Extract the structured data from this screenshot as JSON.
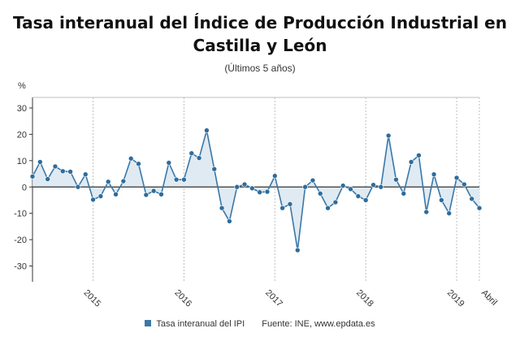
{
  "title": "Tasa interanual del Índice de Producción Industrial en Castilla y León",
  "subtitle": "(Últimos 5 años)",
  "legend": {
    "series_label": "Tasa interanual del IPI",
    "source": "Fuente: INE, www.epdata.es"
  },
  "colors": {
    "line": "#3a78a8",
    "point": "#2f6c9c",
    "fill": "#dbe6f0",
    "grid": "#bfbfbf",
    "axis": "#333333"
  },
  "chart_data": {
    "type": "area",
    "ylabel": "%",
    "ylim": [
      -36,
      34
    ],
    "yticks": [
      30,
      20,
      10,
      0,
      -10,
      -20,
      -30
    ],
    "x_start": "2014-05",
    "x_end": "2019-04",
    "year_ticks": [
      "2015",
      "2016",
      "2017",
      "2018",
      "2019"
    ],
    "end_label": "Abril",
    "grid": "vertical at year boundaries",
    "legend_position": "bottom",
    "series": [
      {
        "name": "Tasa interanual del IPI",
        "values": [
          4.0,
          9.5,
          3.0,
          7.8,
          6.0,
          5.8,
          0.0,
          4.8,
          -4.8,
          -3.5,
          2.0,
          -2.8,
          2.2,
          10.8,
          8.8,
          -3.0,
          -1.5,
          -2.8,
          9.2,
          2.8,
          2.8,
          12.8,
          11.0,
          21.5,
          6.8,
          -8.0,
          -13.0,
          0.0,
          1.0,
          -0.5,
          -2.0,
          -1.8,
          4.2,
          -8.0,
          -6.5,
          -24.0,
          0.0,
          2.5,
          -2.5,
          -8.0,
          -5.8,
          0.5,
          -0.8,
          -3.5,
          -5.0,
          0.8,
          0.0,
          19.5,
          2.8,
          -2.5,
          9.5,
          12.0,
          -9.5,
          4.8,
          -5.0,
          -10.0,
          3.5,
          1.0,
          -4.5,
          -8.0
        ]
      }
    ]
  }
}
